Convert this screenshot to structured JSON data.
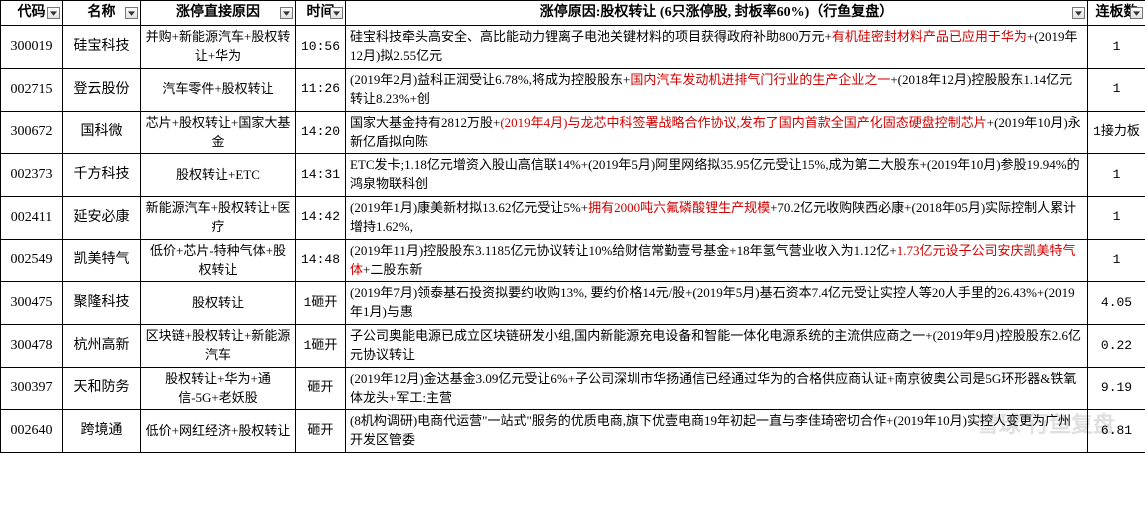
{
  "columns": [
    {
      "key": "code",
      "label": "代码",
      "class": "col-code"
    },
    {
      "key": "name",
      "label": "名称",
      "class": "col-name"
    },
    {
      "key": "direct_cause",
      "label": "涨停直接原因",
      "class": "col-cause"
    },
    {
      "key": "time",
      "label": "时间",
      "class": "col-time"
    },
    {
      "key": "reason",
      "label": "涨停原因:股权转让 (6只涨停股, 封板率60%)（行鱼复盘）",
      "class": "col-reason"
    },
    {
      "key": "streak",
      "label": "连板数",
      "class": "col-streak"
    }
  ],
  "rows": [
    {
      "code": "300019",
      "name": "硅宝科技",
      "direct_cause": "并购+新能源汽车+股权转让+华为",
      "time": "10:56",
      "reason_parts": [
        {
          "t": "硅宝科技牵头高安全、高比能动力锂离子电池关键材料的项目获得政府补助800万元+"
        },
        {
          "t": "有机硅密封材料产品已应用于华为",
          "hl": true
        },
        {
          "t": "+(2019年12月)拟2.55亿元"
        }
      ],
      "streak": "1"
    },
    {
      "code": "002715",
      "name": "登云股份",
      "direct_cause": "汽车零件+股权转让",
      "time": "11:26",
      "reason_parts": [
        {
          "t": "(2019年2月)益科正润受让6.78%,将成为控股股东+"
        },
        {
          "t": "国内汽车发动机进排气门行业的生产企业之一",
          "hl": true
        },
        {
          "t": "+(2018年12月)控股股东1.14亿元转让8.23%+创"
        }
      ],
      "streak": "1"
    },
    {
      "code": "300672",
      "name": "国科微",
      "direct_cause": "芯片+股权转让+国家大基金",
      "time": "14:20",
      "reason_parts": [
        {
          "t": "国家大基金持有2812万股+"
        },
        {
          "t": "(2019年4月)与龙芯中科签署战略合作协议,发布了国内首款全国产化固态硬盘控制芯片",
          "hl": true
        },
        {
          "t": "+(2019年10月)永新亿盾拟向陈"
        }
      ],
      "streak": "1接力板"
    },
    {
      "code": "002373",
      "name": "千方科技",
      "direct_cause": "股权转让+ETC",
      "time": "14:31",
      "reason_parts": [
        {
          "t": "ETC发卡;1.18亿元增资入股山高信联14%+(2019年5月)阿里网络拟35.95亿元受让15%,成为第二大股东+(2019年10月)参股19.94%的鸿泉物联科创"
        }
      ],
      "streak": "1"
    },
    {
      "code": "002411",
      "name": "延安必康",
      "direct_cause": "新能源汽车+股权转让+医疗",
      "time": "14:42",
      "reason_parts": [
        {
          "t": "(2019年1月)康美新材拟13.62亿元受让5%+"
        },
        {
          "t": "拥有2000吨六氟磷酸锂生产规模",
          "hl": true
        },
        {
          "t": "+70.2亿元收购陕西必康+(2018年05月)实际控制人累计增持1.62%,"
        }
      ],
      "streak": "1"
    },
    {
      "code": "002549",
      "name": "凯美特气",
      "direct_cause": "低价+芯片-特种气体+股权转让",
      "time": "14:48",
      "reason_parts": [
        {
          "t": "(2019年11月)控股股东3.1185亿元协议转让10%给财信常勤壹号基金+18年氢气营业收入为1.12亿+"
        },
        {
          "t": "1.73亿元设子公司安庆凯美特气体",
          "hl": true
        },
        {
          "t": "+二股东新"
        }
      ],
      "streak": "1"
    },
    {
      "code": "300475",
      "name": "聚隆科技",
      "direct_cause": "股权转让",
      "time": "1砸开",
      "reason_parts": [
        {
          "t": "(2019年7月)领泰基石投资拟要约收购13%, 要约价格14元/股+(2019年5月)基石资本7.4亿元受让实控人等20人手里的26.43%+(2019年1月)与惠"
        }
      ],
      "streak": "4.05"
    },
    {
      "code": "300478",
      "name": "杭州高新",
      "direct_cause": "区块链+股权转让+新能源汽车",
      "time": "1砸开",
      "reason_parts": [
        {
          "t": "子公司奥能电源已成立区块链研发小组,国内新能源充电设备和智能一体化电源系统的主流供应商之一+(2019年9月)控股股东2.6亿元协议转让"
        }
      ],
      "streak": "0.22"
    },
    {
      "code": "300397",
      "name": "天和防务",
      "direct_cause": "股权转让+华为+通信-5G+老妖股",
      "time": "砸开",
      "reason_parts": [
        {
          "t": "(2019年12月)金达基金3.09亿元受让6%+子公司深圳市华扬通信已经通过华为的合格供应商认证+南京彼奥公司是5G环形器&铁氧体龙头+军工:主营"
        }
      ],
      "streak": "9.19"
    },
    {
      "code": "002640",
      "name": "跨境通",
      "direct_cause": "低价+网红经济+股权转让",
      "time": "砸开",
      "reason_parts": [
        {
          "t": "(8机构调研)电商代运营\"一站式\"服务的优质电商,旗下优壹电商19年初起一直与李佳琦密切合作+(2019年10月)实控人变更为广州开发区管委"
        }
      ],
      "streak": "6.81"
    }
  ],
  "watermark": "雪球 行鱼复盘"
}
